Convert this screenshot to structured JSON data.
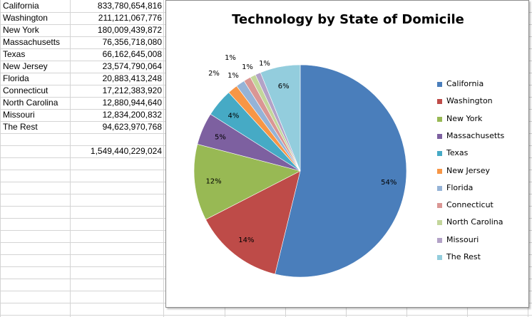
{
  "sheet": {
    "rows": [
      {
        "state": "California",
        "value": "833,780,654,816"
      },
      {
        "state": "Washington",
        "value": "211,121,067,776"
      },
      {
        "state": "New York",
        "value": "180,009,439,872"
      },
      {
        "state": "Massachusetts",
        "value": "76,356,718,080"
      },
      {
        "state": "Texas",
        "value": "66,162,645,008"
      },
      {
        "state": "New Jersey",
        "value": "23,574,790,064"
      },
      {
        "state": "Florida",
        "value": "20,883,413,248"
      },
      {
        "state": "Connecticut",
        "value": "17,212,383,920"
      },
      {
        "state": "North Carolina",
        "value": "12,880,944,640"
      },
      {
        "state": "Missouri",
        "value": "12,834,200,832"
      },
      {
        "state": "The Rest",
        "value": "94,623,970,768"
      }
    ],
    "total": "1,549,440,229,024"
  },
  "chart_data": {
    "type": "pie",
    "title": "Technology by State of Domicile",
    "legend_position": "right",
    "slices": [
      {
        "label": "California",
        "value": 833780654816,
        "pct_label": "54%",
        "color": "#4a7ebb"
      },
      {
        "label": "Washington",
        "value": 211121067776,
        "pct_label": "14%",
        "color": "#be4b48"
      },
      {
        "label": "New York",
        "value": 180009439872,
        "pct_label": "12%",
        "color": "#98b954"
      },
      {
        "label": "Massachusetts",
        "value": 76356718080,
        "pct_label": "5%",
        "color": "#7d60a0"
      },
      {
        "label": "Texas",
        "value": 66162645008,
        "pct_label": "4%",
        "color": "#46aac5"
      },
      {
        "label": "New Jersey",
        "value": 23574790064,
        "pct_label": "2%",
        "color": "#f79646"
      },
      {
        "label": "Florida",
        "value": 20883413248,
        "pct_label": "1%",
        "color": "#95b3d7"
      },
      {
        "label": "Connecticut",
        "value": 17212383920,
        "pct_label": "1%",
        "color": "#da9694"
      },
      {
        "label": "North Carolina",
        "value": 12880944640,
        "pct_label": "1%",
        "color": "#c3d69b"
      },
      {
        "label": "Missouri",
        "value": 12834200832,
        "pct_label": "1%",
        "color": "#b3a2c7"
      },
      {
        "label": "The Rest",
        "value": 94623970768,
        "pct_label": "6%",
        "color": "#93cddd"
      }
    ]
  }
}
